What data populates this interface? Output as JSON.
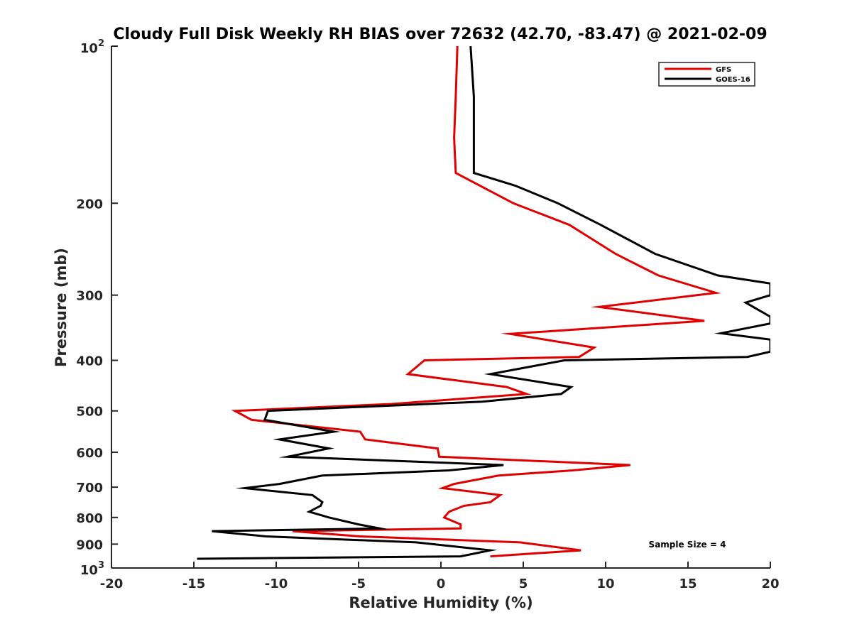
{
  "chart_data": {
    "type": "line",
    "title": "Cloudy Full Disk Weekly RH BIAS over 72632 (42.70, -83.47) @ 2021-02-09",
    "xlabel": "Relative Humidity (%)",
    "ylabel": "Pressure (mb)",
    "xlim": [
      -20,
      20
    ],
    "ylim": [
      100,
      1000
    ],
    "y_scale": "log",
    "y_reversed": true,
    "grid": false,
    "x_ticks": [
      -20,
      -15,
      -10,
      -5,
      0,
      5,
      10,
      15,
      20
    ],
    "x_tick_labels": [
      "-20",
      "-15",
      "-10",
      "-5",
      "0",
      "5",
      "10",
      "15",
      "20"
    ],
    "y_ticks": [
      100,
      200,
      300,
      400,
      500,
      600,
      700,
      800,
      900,
      1000
    ],
    "y_tick_labels": [
      "",
      "200",
      "300",
      "400",
      "500",
      "600",
      "700",
      "800",
      "900",
      ""
    ],
    "y_tick_power_labels": [
      {
        "value": 100,
        "base": "10",
        "exp": "2"
      },
      {
        "value": 1000,
        "base": "10",
        "exp": "3"
      }
    ],
    "legend": {
      "placement": "top-right",
      "entries": [
        {
          "name": "GFS",
          "color": "#e00000"
        },
        {
          "name": "GOES-16",
          "color": "#000000"
        }
      ]
    },
    "annotation": "Sample Size = 4",
    "series": [
      {
        "name": "GFS",
        "color": "#e00000",
        "points": [
          [
            1.0,
            100
          ],
          [
            0.9,
            125
          ],
          [
            0.8,
            150
          ],
          [
            0.9,
            175
          ],
          [
            4.4,
            200
          ],
          [
            7.8,
            220
          ],
          [
            10.6,
            250
          ],
          [
            13.2,
            275
          ],
          [
            16.7,
            297
          ],
          [
            9.6,
            316
          ],
          [
            16.0,
            336
          ],
          [
            4.2,
            356
          ],
          [
            9.3,
            378
          ],
          [
            8.4,
            394
          ],
          [
            -1.0,
            400
          ],
          [
            -2.0,
            425
          ],
          [
            4.0,
            450
          ],
          [
            5.2,
            464
          ],
          [
            -3.0,
            485
          ],
          [
            -12.5,
            500
          ],
          [
            -11.5,
            520
          ],
          [
            -4.9,
            548
          ],
          [
            -4.6,
            567
          ],
          [
            -0.2,
            590
          ],
          [
            -0.1,
            612
          ],
          [
            11.5,
            635
          ],
          [
            8.0,
            650
          ],
          [
            3.5,
            665
          ],
          [
            0.8,
            690
          ],
          [
            0.1,
            703
          ],
          [
            3.6,
            725
          ],
          [
            3.0,
            748
          ],
          [
            1.4,
            760
          ],
          [
            0.5,
            780
          ],
          [
            0.2,
            800
          ],
          [
            1.2,
            825
          ],
          [
            1.2,
            840
          ],
          [
            -9.0,
            850
          ],
          [
            -4.9,
            870
          ],
          [
            4.8,
            893
          ],
          [
            8.5,
            925
          ],
          [
            3.0,
            950
          ]
        ]
      },
      {
        "name": "GOES-16",
        "color": "#000000",
        "points": [
          [
            1.8,
            100
          ],
          [
            2.0,
            125
          ],
          [
            2.0,
            150
          ],
          [
            2.0,
            175
          ],
          [
            4.5,
            185
          ],
          [
            7.1,
            200
          ],
          [
            9.7,
            220
          ],
          [
            13.0,
            250
          ],
          [
            16.8,
            275
          ],
          [
            20.0,
            285
          ],
          [
            20.0,
            300
          ],
          [
            18.5,
            310
          ],
          [
            20.0,
            330
          ],
          [
            20.0,
            340
          ],
          [
            17.0,
            355
          ],
          [
            20.0,
            365
          ],
          [
            20.0,
            385
          ],
          [
            18.6,
            394
          ],
          [
            7.5,
            400
          ],
          [
            3.0,
            425
          ],
          [
            7.9,
            450
          ],
          [
            7.3,
            464
          ],
          [
            2.5,
            480
          ],
          [
            -10.5,
            500
          ],
          [
            -10.7,
            520
          ],
          [
            -6.5,
            548
          ],
          [
            -9.8,
            567
          ],
          [
            -6.8,
            590
          ],
          [
            -9.3,
            612
          ],
          [
            3.8,
            635
          ],
          [
            0.5,
            650
          ],
          [
            -7.2,
            665
          ],
          [
            -9.8,
            690
          ],
          [
            -11.9,
            703
          ],
          [
            -7.8,
            725
          ],
          [
            -7.2,
            748
          ],
          [
            -7.3,
            760
          ],
          [
            -8.0,
            780
          ],
          [
            -6.8,
            800
          ],
          [
            -5.0,
            825
          ],
          [
            -3.7,
            840
          ],
          [
            -13.9,
            850
          ],
          [
            -10.6,
            870
          ],
          [
            -1.5,
            893
          ],
          [
            3.0,
            925
          ],
          [
            1.2,
            950
          ],
          [
            -14.8,
            960
          ]
        ]
      }
    ]
  }
}
